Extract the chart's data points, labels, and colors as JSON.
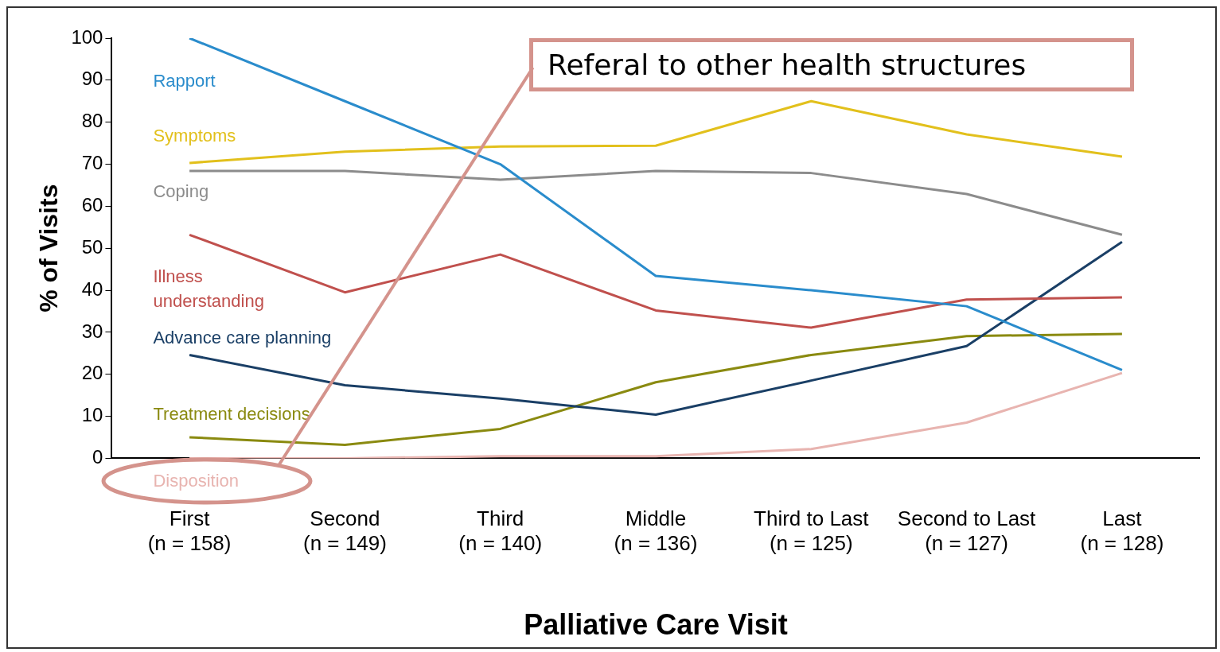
{
  "chart_data": {
    "type": "line",
    "xlabel": "Palliative Care Visit",
    "ylabel": "% of Visits",
    "categories": [
      "First (n = 158)",
      "Second (n = 149)",
      "Third (n = 140)",
      "Middle (n = 136)",
      "Third to Last (n = 125)",
      "Second to Last (n = 127)",
      "Last (n = 128)"
    ],
    "series": [
      {
        "name": "Rapport",
        "color": "#2a8ccc",
        "values": [
          100,
          85,
          70,
          43.4,
          40,
          36.2,
          21
        ]
      },
      {
        "name": "Symptoms",
        "color": "#e2c01c",
        "values": [
          70.3,
          73,
          74.2,
          74.4,
          85,
          77.1,
          71.8
        ]
      },
      {
        "name": "Coping",
        "color": "#8c8c8c",
        "values": [
          68.4,
          68.4,
          66.3,
          68.4,
          67.9,
          62.9,
          53.2
        ]
      },
      {
        "name": "Illness understanding",
        "color": "#c0504d",
        "values": [
          53.2,
          39.5,
          48.5,
          35.2,
          31.1,
          37.8,
          38.3
        ]
      },
      {
        "name": "Advance care planning",
        "color": "#1a3f66",
        "values": [
          24.6,
          17.4,
          14.2,
          10.4,
          18.5,
          26.7,
          51.5
        ]
      },
      {
        "name": "Treatment decisions",
        "color": "#8a8a10",
        "values": [
          5,
          3.2,
          7,
          18.1,
          24.6,
          29.1,
          29.6
        ]
      },
      {
        "name": "Disposition",
        "color": "#e8b4b0",
        "values": [
          0,
          0,
          0.5,
          0.5,
          2.2,
          8.5,
          20.3
        ]
      }
    ],
    "ylim": [
      0,
      100
    ],
    "yticks": [
      0,
      10,
      20,
      30,
      40,
      50,
      60,
      70,
      80,
      90,
      100
    ],
    "grid": false,
    "legend": false,
    "marker": "none",
    "line_style": "solid",
    "annotations": [
      "Referal to other health structures"
    ]
  }
}
